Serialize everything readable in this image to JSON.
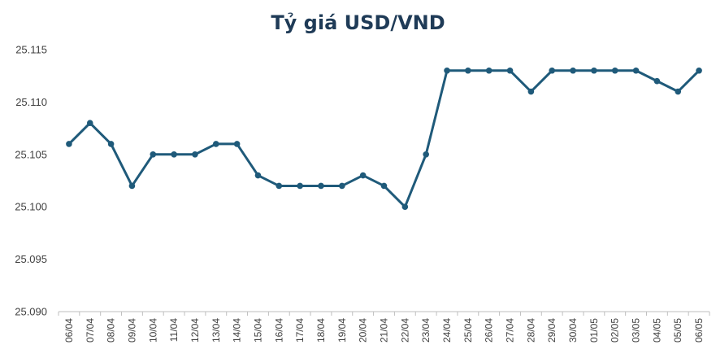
{
  "chart_data": {
    "type": "line",
    "title": "Tỷ giá USD/VND",
    "xlabel": "",
    "ylabel": "",
    "categories": [
      "06/04",
      "07/04",
      "08/04",
      "09/04",
      "10/04",
      "11/04",
      "12/04",
      "13/04",
      "14/04",
      "15/04",
      "16/04",
      "17/04",
      "18/04",
      "19/04",
      "20/04",
      "21/04",
      "22/04",
      "23/04",
      "24/04",
      "25/04",
      "26/04",
      "27/04",
      "28/04",
      "29/04",
      "30/04",
      "01/05",
      "02/05",
      "03/05",
      "04/05",
      "05/05",
      "06/05"
    ],
    "series": [
      {
        "values": [
          25106,
          25108,
          25106,
          25102,
          25105,
          25105,
          25105,
          25106,
          25106,
          25103,
          25102,
          25102,
          25102,
          25102,
          25103,
          25102,
          25100,
          25105,
          25113,
          25113,
          25113,
          25113,
          25111,
          25113,
          25113,
          25113,
          25113,
          25113,
          25112,
          25111,
          25113
        ]
      }
    ],
    "ylim": [
      25090,
      25115
    ],
    "yticks": [
      25090,
      25095,
      25100,
      25105,
      25110,
      25115
    ],
    "ytick_labels": [
      "25.090",
      "25.095",
      "25.100",
      "25.105",
      "25.110",
      "25.115"
    ],
    "grid": false,
    "legend": "none",
    "line_color": "#1f5a7a",
    "axis_color": "#bfbfbf"
  }
}
